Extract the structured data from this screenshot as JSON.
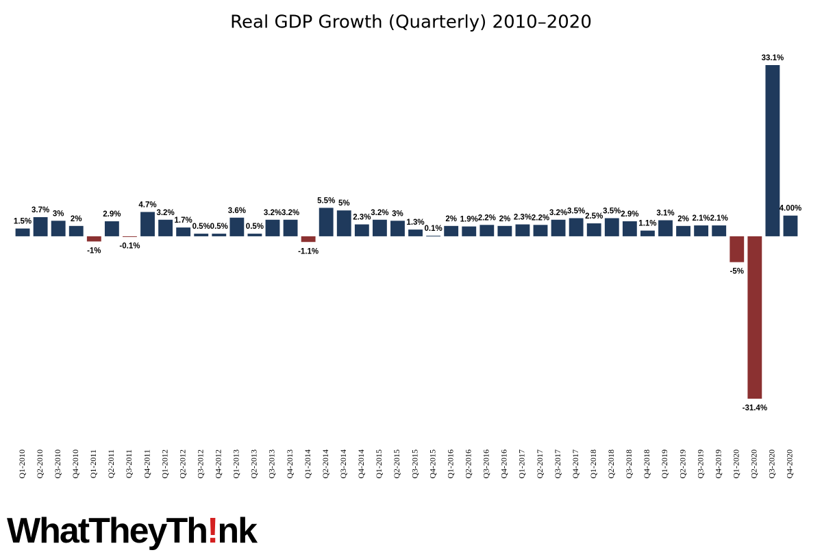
{
  "chart_data": {
    "type": "bar",
    "title": "Real GDP Growth (Quarterly) 2010–2020",
    "categories": [
      "Q1-2010",
      "Q2-2010",
      "Q3-2010",
      "Q4-2010",
      "Q1-2011",
      "Q2-2011",
      "Q3-2011",
      "Q4-2011",
      "Q1-2012",
      "Q2-2012",
      "Q3-2012",
      "Q4-2012",
      "Q1-2013",
      "Q2-2013",
      "Q3-2013",
      "Q4-2013",
      "Q1-2014",
      "Q2-2014",
      "Q3-2014",
      "Q4-2014",
      "Q1-2015",
      "Q2-2015",
      "Q3-2015",
      "Q4-2015",
      "Q1-2016",
      "Q2-2016",
      "Q3-2016",
      "Q4-2016",
      "Q1-2017",
      "Q2-2017",
      "Q3-2017",
      "Q4-2017",
      "Q1-2018",
      "Q2-2018",
      "Q3-2018",
      "Q4-2018",
      "Q1-2019",
      "Q2-2019",
      "Q3-2019",
      "Q4-2019",
      "Q1-2020",
      "Q2-2020",
      "Q3-2020",
      "Q4-2020"
    ],
    "values": [
      1.5,
      3.7,
      3,
      2,
      -1,
      2.9,
      -0.1,
      4.7,
      3.2,
      1.7,
      0.5,
      0.5,
      3.6,
      0.5,
      3.2,
      3.2,
      -1.1,
      5.5,
      5,
      2.3,
      3.2,
      3,
      1.3,
      0.1,
      2,
      1.9,
      2.2,
      2,
      2.3,
      2.2,
      3.2,
      3.5,
      2.5,
      3.5,
      2.9,
      1.1,
      3.1,
      2,
      2.1,
      2.1,
      -5,
      -31.4,
      33.1,
      4
    ],
    "value_labels": [
      "1.5%",
      "3.7%",
      "3%",
      "2%",
      "-1%",
      "2.9%",
      "-0.1%",
      "4.7%",
      "3.2%",
      "1.7%",
      "0.5%",
      "0.5%",
      "3.6%",
      "0.5%",
      "3.2%",
      "3.2%",
      "-1.1%",
      "5.5%",
      "5%",
      "2.3%",
      "3.2%",
      "3%",
      "1.3%",
      "0.1%",
      "2%",
      "1.9%",
      "2.2%",
      "2%",
      "2.3%",
      "2.2%",
      "3.2%",
      "3.5%",
      "2.5%",
      "3.5%",
      "2.9%",
      "1.1%",
      "3.1%",
      "2%",
      "2.1%",
      "2.1%",
      "-5%",
      "-31.4%",
      "33.1%",
      "4.00%"
    ],
    "positive_color": "#1f3a5c",
    "negative_color": "#8b3131"
  },
  "logo": {
    "text": "WhatTheyTh",
    "accent": "!",
    "rest": "nk"
  }
}
